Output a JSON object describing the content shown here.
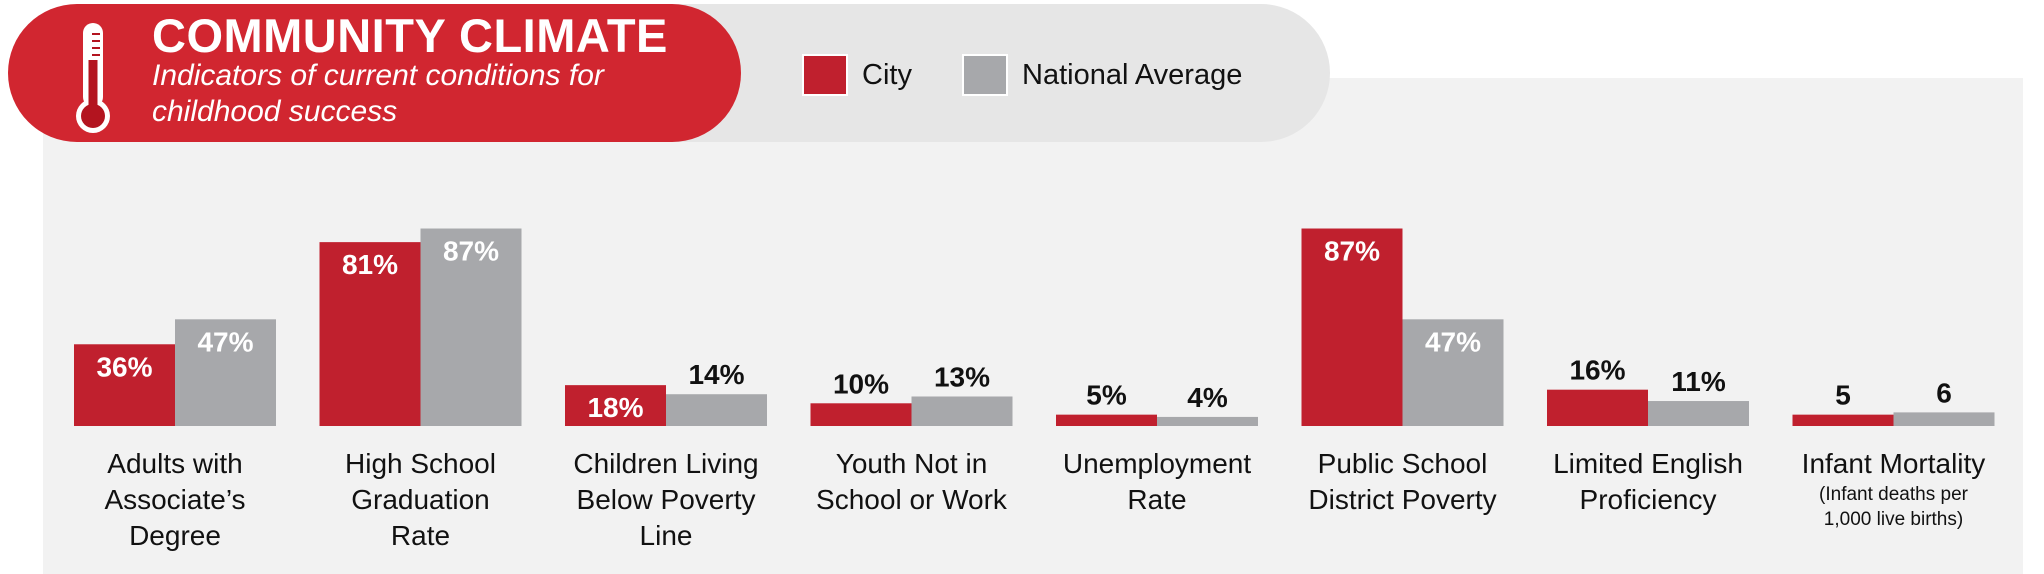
{
  "header": {
    "title": "COMMUNITY CLIMATE",
    "subtitle": "Indicators of current conditions for childhood success",
    "icon": "thermometer-icon"
  },
  "legend": {
    "city_label": "City",
    "national_label": "National Average"
  },
  "colors": {
    "city": "#c0202e",
    "national": "#a7a8ab",
    "header": "#d12630"
  },
  "chart_data": {
    "type": "bar",
    "series": [
      {
        "name": "City",
        "values": [
          36,
          81,
          18,
          10,
          5,
          87,
          16,
          5
        ],
        "labels": [
          "36%",
          "81%",
          "18%",
          "10%",
          "5%",
          "87%",
          "16%",
          "5"
        ]
      },
      {
        "name": "National Average",
        "values": [
          47,
          87,
          14,
          13,
          4,
          47,
          11,
          6
        ],
        "labels": [
          "47%",
          "87%",
          "14%",
          "13%",
          "4%",
          "47%",
          "11%",
          "6"
        ]
      }
    ],
    "categories": [
      {
        "lines": [
          "Adults with",
          "Associate’s",
          "Degree"
        ]
      },
      {
        "lines": [
          "High School",
          "Graduation",
          "Rate"
        ]
      },
      {
        "lines": [
          "Children Living",
          "Below Poverty",
          "Line"
        ]
      },
      {
        "lines": [
          "Youth Not in",
          "School or Work"
        ]
      },
      {
        "lines": [
          "Unemployment",
          "Rate"
        ]
      },
      {
        "lines": [
          "Public School",
          "District Poverty"
        ]
      },
      {
        "lines": [
          "Limited English",
          "Proficiency"
        ]
      },
      {
        "lines": [
          "Infant Mortality"
        ],
        "sublines": [
          "(Infant deaths per",
          "1,000 live births)"
        ]
      }
    ],
    "ylim": [
      0,
      100
    ],
    "grid": false,
    "legend_position": "top"
  }
}
